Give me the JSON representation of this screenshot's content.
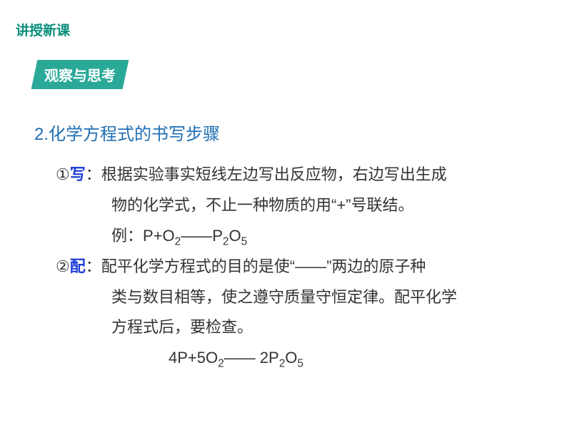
{
  "colors": {
    "header_text": "#0a8f7d",
    "badge_bg": "#2aa998",
    "badge_text": "#ffffff",
    "section_title": "#1f6fb5",
    "keyword": "#1f3fd6",
    "marker": "#333333",
    "body_text": "#333333"
  },
  "typography": {
    "header_fontsize": 19,
    "badge_fontsize": 20,
    "section_fontsize": 24,
    "body_fontsize": 22,
    "line_height": 1.95
  },
  "header": {
    "label": "讲授新课"
  },
  "badge": {
    "label": "观察与思考"
  },
  "section_title": {
    "text": "2.化学方程式的书写步骤"
  },
  "items": [
    {
      "marker": "①",
      "keyword": "写",
      "colon": "：",
      "line1": "根据实验事实短线左边写出反应物，右边写出生成",
      "line2": "物的化学式，不止一种物质的用“+”号联结。",
      "example_prefix": "例：",
      "equation_html": "P+O<sub>2</sub>——P<sub>2</sub>O<sub>5</sub>"
    },
    {
      "marker": "②",
      "keyword": "配",
      "colon": "：",
      "line1": "配平化学方程式的目的是使“——”两边的原子种",
      "line2": "类与数目相等，使之遵守质量守恒定律。配平化学",
      "line3": "方程式后，要检查。",
      "equation_html": "4P+5O<sub>2</sub>—— 2P<sub>2</sub>O<sub>5</sub>"
    }
  ]
}
